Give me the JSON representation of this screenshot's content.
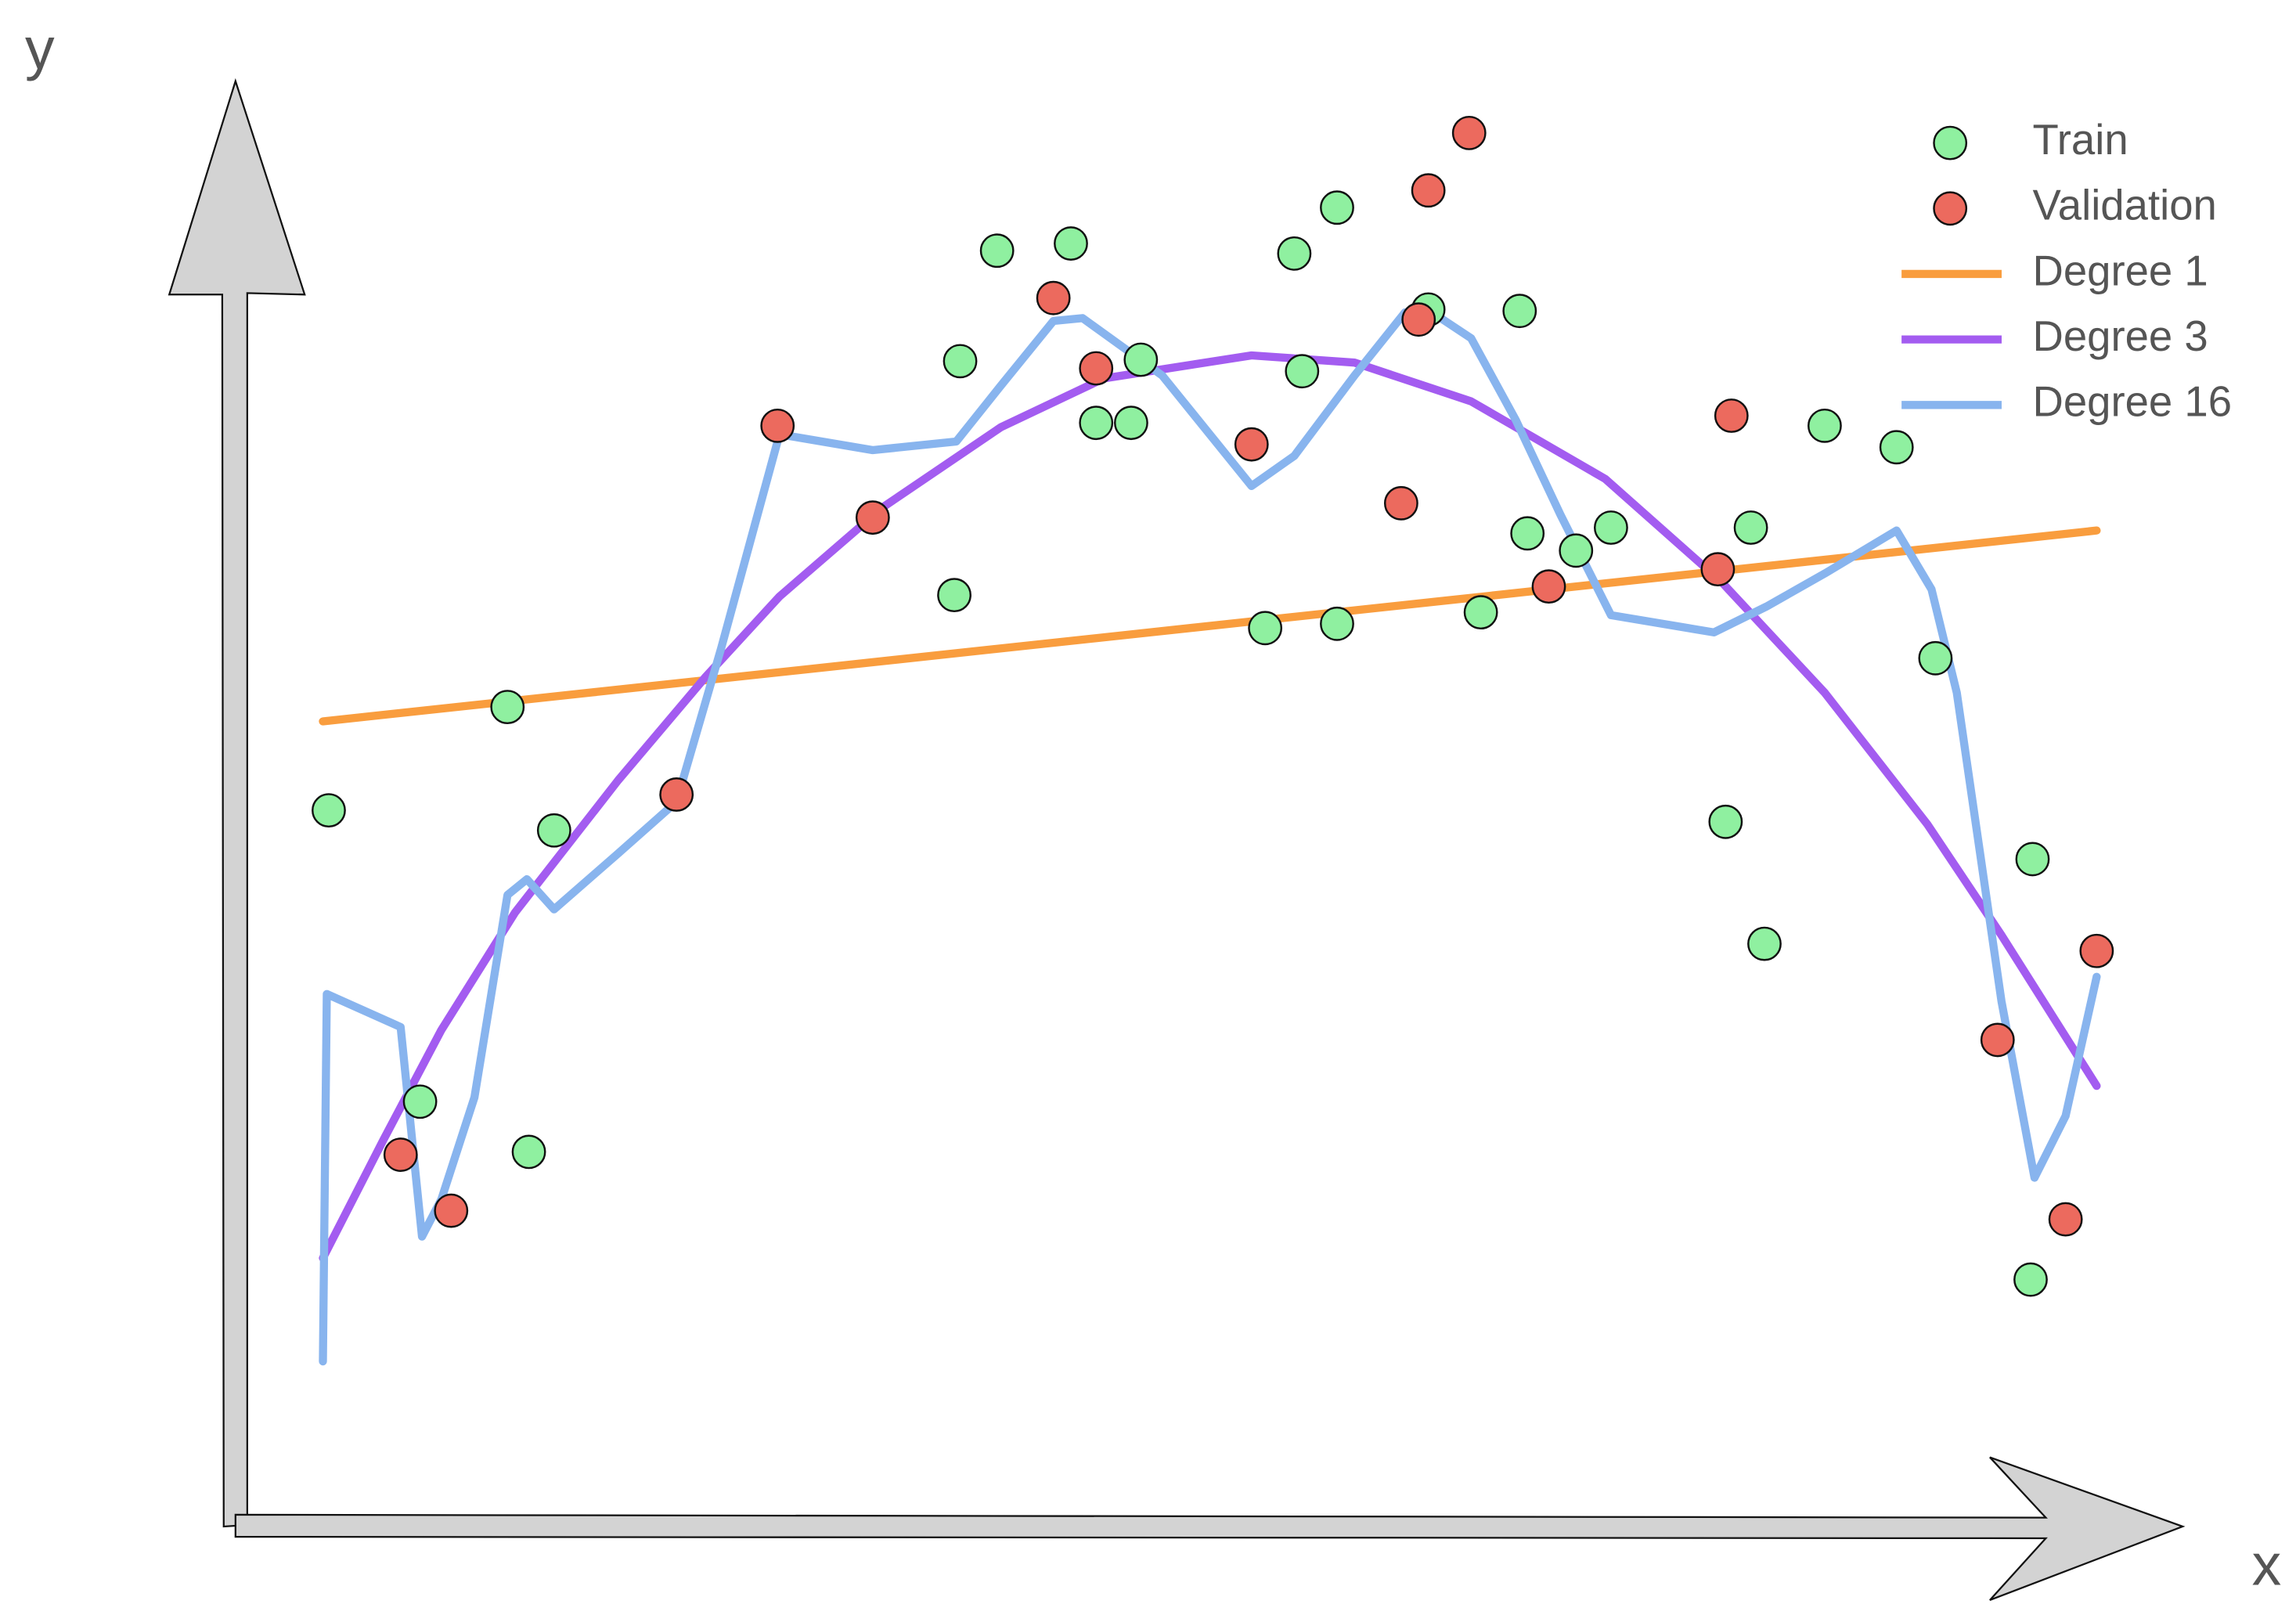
{
  "chart_data": {
    "type": "scatter",
    "x_label": "x",
    "y_label": "y",
    "xlim": [
      0,
      100
    ],
    "ylim": [
      0,
      100
    ],
    "grid": false,
    "legend": "upper right",
    "series": [
      {
        "name": "Train",
        "type": "scatter",
        "color": "#8ff0a0",
        "x": [
          4.8,
          9.5,
          15.1,
          14.0,
          16.4,
          37.0,
          37.3,
          39.2,
          43.0,
          44.3,
          46.1,
          46.6,
          53.0,
          54.5,
          54.9,
          56.7,
          56.7,
          61.4,
          64.1,
          66.1,
          66.5,
          69.0,
          70.8,
          76.7,
          78.0,
          78.7,
          81.8,
          85.5,
          87.5,
          92.5,
          92.4
        ],
        "y": [
          49.7,
          29.4,
          25.9,
          56.9,
          48.3,
          64.7,
          81.0,
          88.7,
          89.2,
          76.7,
          76.7,
          81.1,
          62.4,
          88.5,
          80.3,
          91.7,
          62.7,
          84.6,
          63.5,
          84.5,
          69.0,
          67.8,
          69.4,
          48.9,
          69.4,
          40.4,
          76.5,
          75.0,
          60.3,
          46.3,
          17.0
        ]
      },
      {
        "name": "Validation",
        "type": "scatter",
        "color": "#ec6a5e",
        "x": [
          8.5,
          11.1,
          22.7,
          27.9,
          32.8,
          42.1,
          44.3,
          52.3,
          60.0,
          60.9,
          61.4,
          63.5,
          67.6,
          76.3,
          77.0,
          90.7,
          94.2,
          95.8
        ],
        "y": [
          25.7,
          21.8,
          50.8,
          76.5,
          70.1,
          85.4,
          80.5,
          75.2,
          71.1,
          83.9,
          92.9,
          96.9,
          65.3,
          66.5,
          77.2,
          33.7,
          21.2,
          39.9
        ]
      },
      {
        "name": "Degree 1",
        "type": "line",
        "color": "#f99d3e",
        "x": [
          4.5,
          95.8
        ],
        "y": [
          55.9,
          69.2
        ]
      },
      {
        "name": "Degree 3",
        "type": "line",
        "color": "#a35cf0",
        "x": [
          4.5,
          7.6,
          10.6,
          14.4,
          19.7,
          24.2,
          28.0,
          33.3,
          39.4,
          44.7,
          52.3,
          57.6,
          63.6,
          70.5,
          76.5,
          81.8,
          87.1,
          90.9,
          95.8
        ],
        "y": [
          18.5,
          26.7,
          34.4,
          42.6,
          51.8,
          59.0,
          64.6,
          70.8,
          76.4,
          79.8,
          81.4,
          80.9,
          78.2,
          72.8,
          65.6,
          57.9,
          48.7,
          41.0,
          30.5
        ]
      },
      {
        "name": "Degree 16",
        "type": "line",
        "color": "#88b4ee",
        "x": [
          4.5,
          4.7,
          8.5,
          9.6,
          10.6,
          12.3,
          14.0,
          15.0,
          16.4,
          19.7,
          22.7,
          25.0,
          28.0,
          32.8,
          37.1,
          39.4,
          42.1,
          43.6,
          47.7,
          52.3,
          54.5,
          57.6,
          60.2,
          61.7,
          63.6,
          65.9,
          68.2,
          70.8,
          76.1,
          78.8,
          81.8,
          85.5,
          87.3,
          88.6,
          89.8,
          90.9,
          92.6,
          94.2,
          95.8
        ],
        "y": [
          11.3,
          36.9,
          34.6,
          20.0,
          22.6,
          29.7,
          43.8,
          44.9,
          42.8,
          46.7,
          50.3,
          61.0,
          75.9,
          74.8,
          75.4,
          79.3,
          83.8,
          84.0,
          80.0,
          72.3,
          74.4,
          80.0,
          84.4,
          84.3,
          82.6,
          76.9,
          70.3,
          63.3,
          62.1,
          63.9,
          66.2,
          69.2,
          65.1,
          57.9,
          46.7,
          36.4,
          24.1,
          28.4,
          38.1
        ]
      }
    ]
  }
}
